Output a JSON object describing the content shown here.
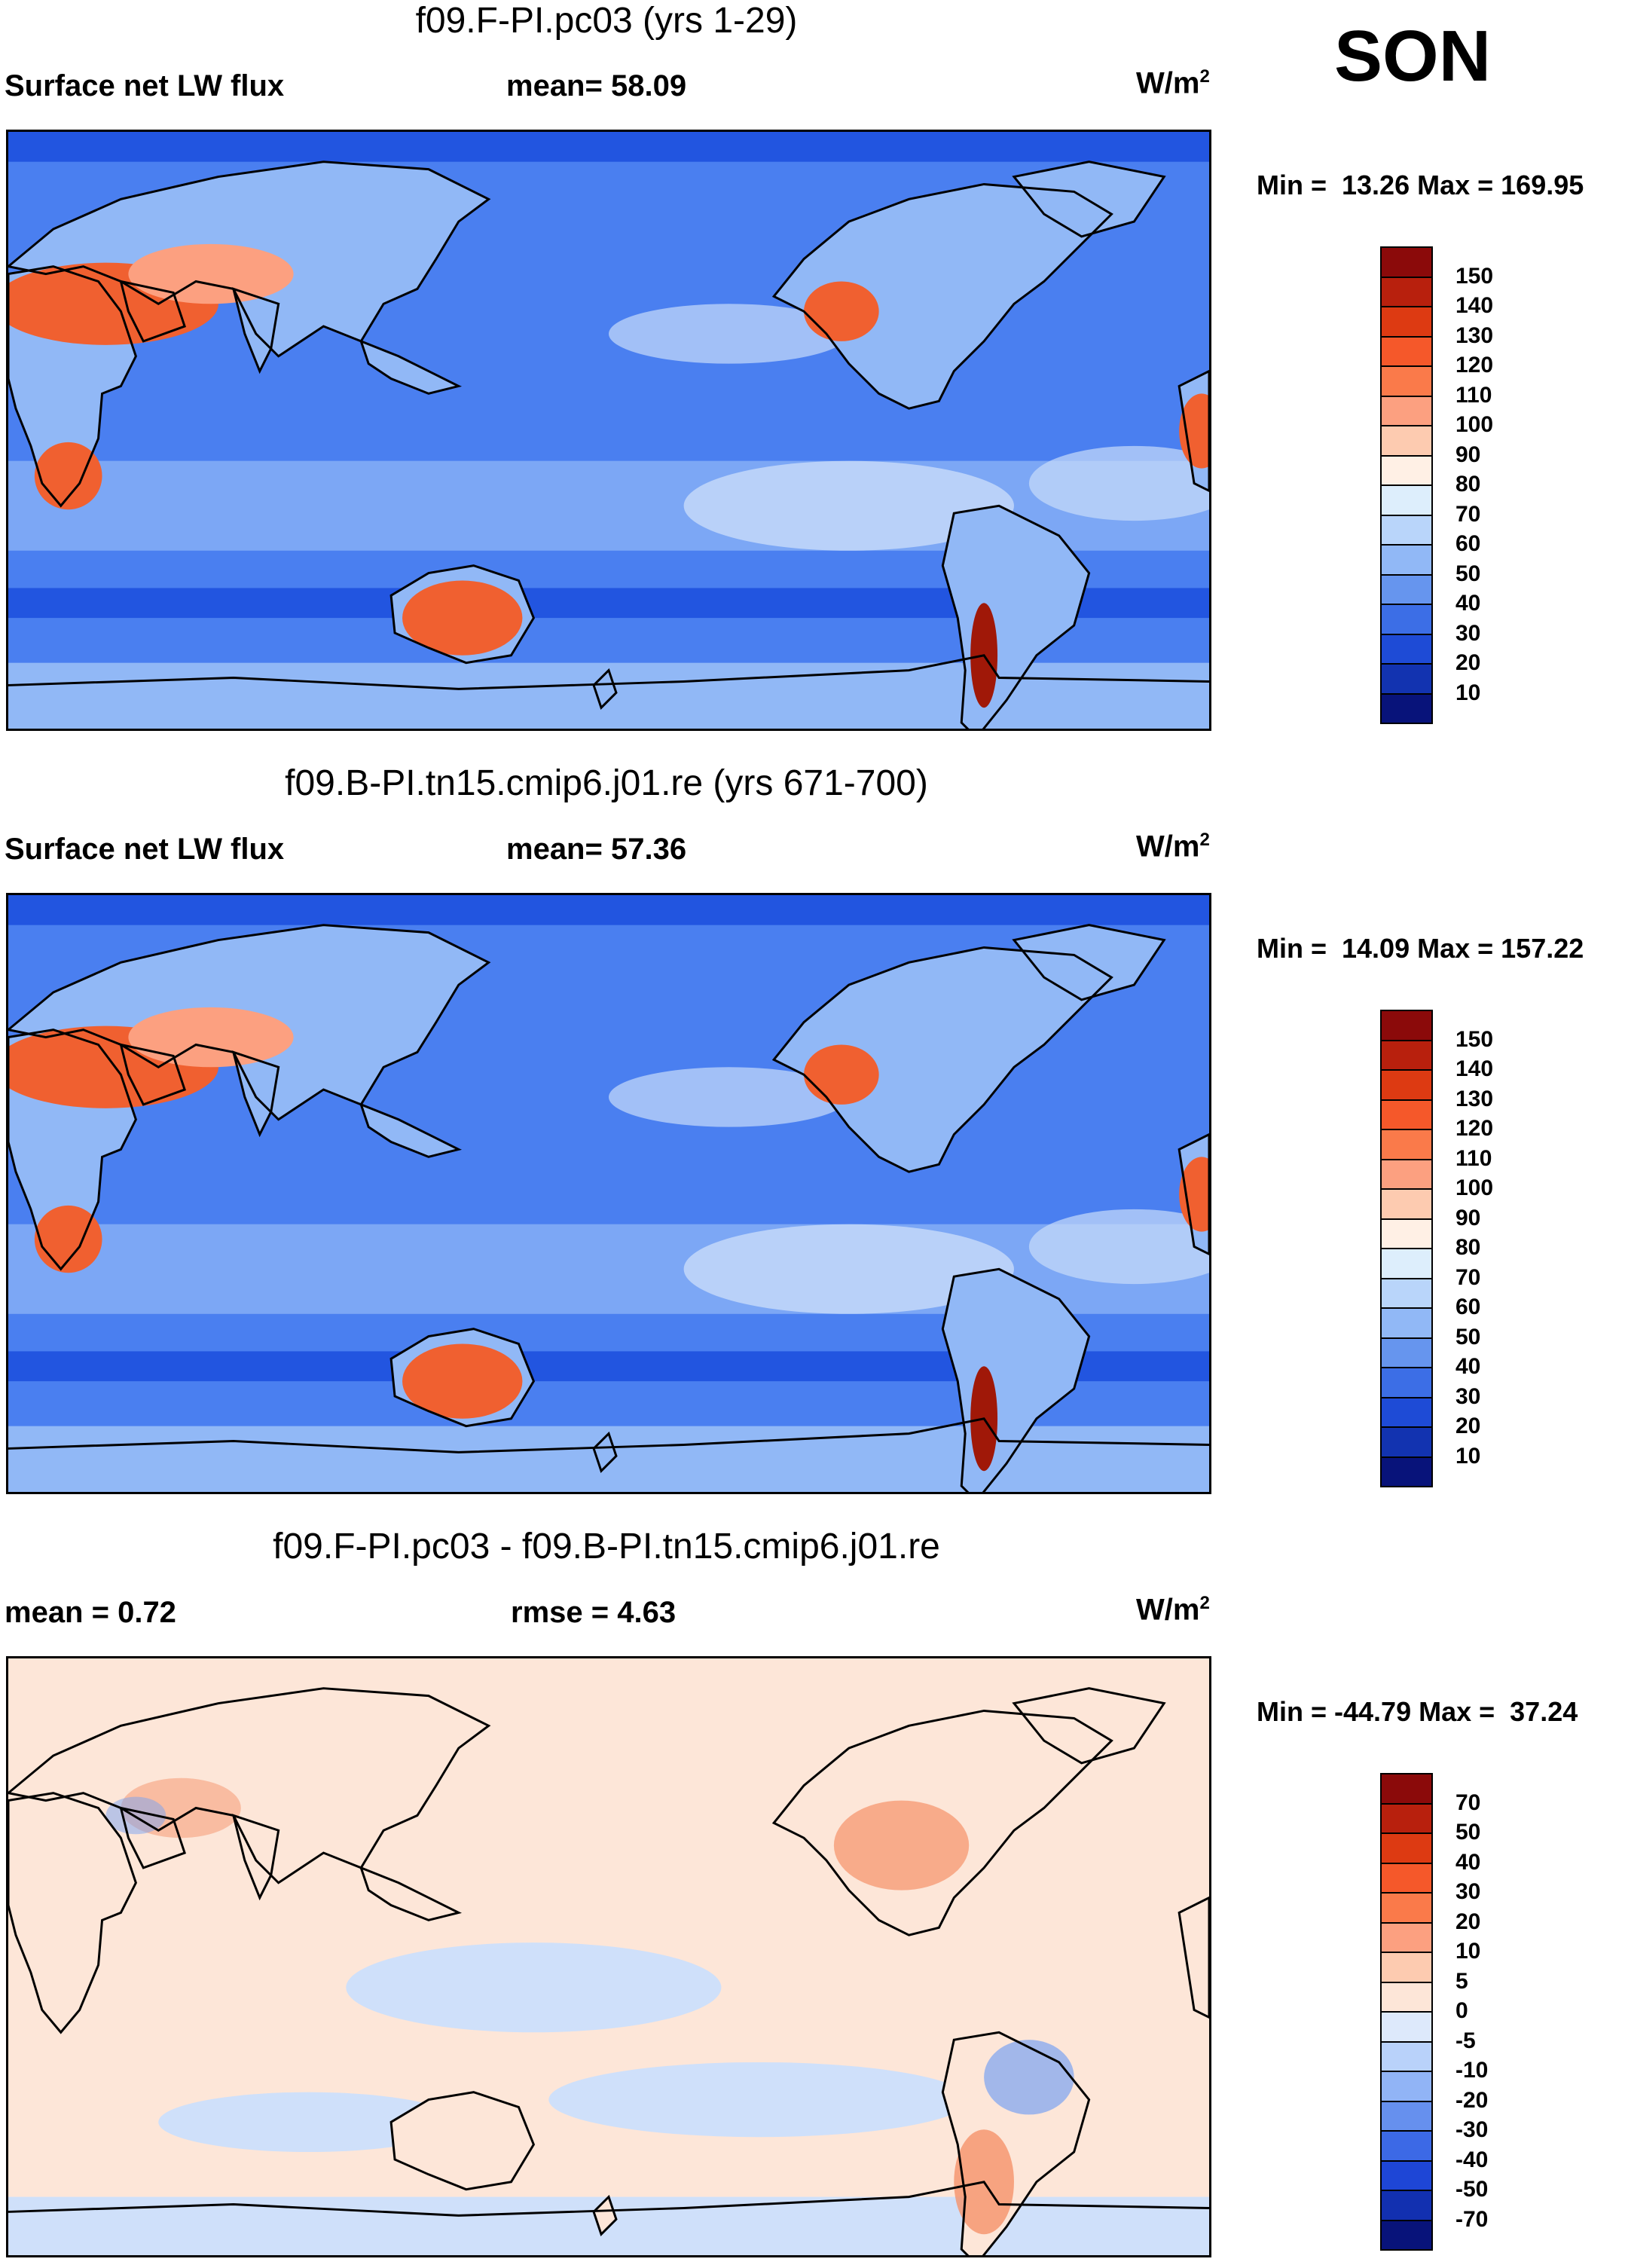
{
  "season": "SON",
  "panels": [
    {
      "title": "f09.F-PI.pc03 (yrs 1-29)",
      "left_label": "Surface net LW flux",
      "center_label": "mean=  58.09",
      "units": "W/m",
      "units_sup": "2",
      "minmax": "Min =  13.26 Max = 169.95",
      "variant": "field"
    },
    {
      "title": "f09.B-PI.tn15.cmip6.j01.re (yrs 671-700)",
      "left_label": "Surface net LW flux",
      "center_label": "mean=  57.36",
      "units": "W/m",
      "units_sup": "2",
      "minmax": "Min =  14.09 Max = 157.22",
      "variant": "field"
    },
    {
      "title": "f09.F-PI.pc03 - f09.B-PI.tn15.cmip6.j01.re",
      "left_label": "mean =   0.72",
      "center_label": "rmse =   4.63",
      "units": "W/m",
      "units_sup": "2",
      "minmax": "Min = -44.79 Max =  37.24",
      "variant": "diff"
    }
  ],
  "colorbar_field": {
    "labels": [
      "150",
      "140",
      "130",
      "120",
      "110",
      "100",
      "90",
      "80",
      "70",
      "60",
      "50",
      "40",
      "30",
      "20",
      "10"
    ],
    "colors": [
      "#8b0a0a",
      "#b8200d",
      "#dd3a12",
      "#f5582a",
      "#fa7a4a",
      "#fca080",
      "#fdcbb0",
      "#fff0e5",
      "#ddeefc",
      "#b9d5fa",
      "#91b8f6",
      "#6695ee",
      "#3c6ee6",
      "#1e4bd6",
      "#1233b0",
      "#08137a"
    ]
  },
  "colorbar_diff": {
    "labels": [
      "70",
      "50",
      "40",
      "30",
      "20",
      "10",
      "5",
      "0",
      "-5",
      "-10",
      "-20",
      "-30",
      "-40",
      "-50",
      "-70"
    ],
    "colors": [
      "#8b0a0a",
      "#b8200d",
      "#dd3a12",
      "#f5582a",
      "#fa7a4a",
      "#fca080",
      "#fdcbb0",
      "#fde6d8",
      "#dde9fb",
      "#b9d2fa",
      "#91b4f6",
      "#6690ee",
      "#3c69e6",
      "#1e46d6",
      "#1230b0",
      "#08137a"
    ]
  },
  "map_colors": {
    "ocean": "#4a7ff0",
    "ocean_light": "#91b8f6",
    "ocean_pale": "#c8dcfa",
    "polar": "#2255e0",
    "land_hot": "#f06030",
    "land_warm": "#fca080",
    "land_dark": "#a01808",
    "diff_bg": "#fde6d8",
    "diff_blue": "#cfe0fa",
    "diff_red": "#f5926a",
    "diff_darkblue": "#7aa2f2"
  }
}
